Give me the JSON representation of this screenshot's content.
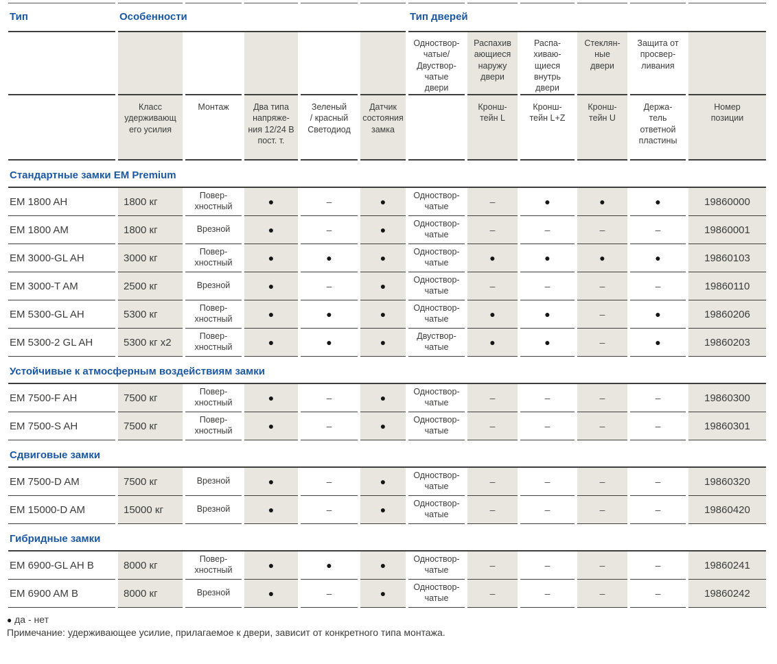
{
  "colors": {
    "accent_blue": "#1b58a4",
    "band_beige": "#e8e6df",
    "line_dark": "#3d3d3b",
    "text_dark": "#3c3c3b"
  },
  "symbols": {
    "yes": "●",
    "no": "–"
  },
  "header": {
    "groups": [
      {
        "label": "Тип"
      },
      {
        "label": "Особенности"
      },
      {
        "label": "Тип дверей"
      }
    ],
    "door_types": [
      "Одноствор-\nчатые/\nДвуствор-\nчатые\nдвери",
      "Распахив\nающиеся\nнаружу\nдвери",
      "Распа-\nхиваю-\nщиеся\nвнутрь\nдвери",
      "Стеклян-\nные\nдвери",
      "Защита от\nпросвер-\nливания"
    ],
    "columns": [
      "Класс\nудерживающ\nего усилия",
      "Монтаж",
      "Два типа\nнапряже-\nния 12/24 В\nпост. т.",
      "Зеленый\n/ красный\nСветодиод",
      "Датчик\nсостояния\nзамка",
      "",
      "Кронш-\nтейн L",
      "Кронш-\nтейн L+Z",
      "Кронш-\nтейн U",
      "Держа-\nтель\nответной\nпластины",
      "Номер\nпозиции"
    ]
  },
  "sections": [
    {
      "title": "Стандартные замки EM Premium",
      "rows": [
        {
          "name": "EM 1800 AH",
          "force": "1800 кг",
          "mount": "Повер-\nхностный",
          "features": [
            "●",
            "–",
            "●"
          ],
          "door": "Одноствор-\nчатые",
          "brackets": [
            "–",
            "●",
            "●",
            "●"
          ],
          "part": "19860000"
        },
        {
          "name": "EM 1800 AM",
          "force": "1800 кг",
          "mount": "Врезной",
          "features": [
            "●",
            "–",
            "●"
          ],
          "door": "Одноствор-\nчатые",
          "brackets": [
            "–",
            "–",
            "–",
            "–"
          ],
          "part": "19860001"
        },
        {
          "name": "EM 3000-GL AH",
          "force": "3000 кг",
          "mount": "Повер-\nхностный",
          "features": [
            "●",
            "●",
            "●"
          ],
          "door": "Одноствор-\nчатые",
          "brackets": [
            "●",
            "●",
            "●",
            "●"
          ],
          "part": "19860103"
        },
        {
          "name": "EM 3000-T AM",
          "force": "2500 кг",
          "mount": "Врезной",
          "features": [
            "●",
            "–",
            "●"
          ],
          "door": "Одноствор-\nчатые",
          "brackets": [
            "–",
            "–",
            "–",
            "–"
          ],
          "part": "19860110"
        },
        {
          "name": "EM 5300-GL AH",
          "force": "5300 кг",
          "mount": "Повер-\nхностный",
          "features": [
            "●",
            "●",
            "●"
          ],
          "door": "Одноствор-\nчатые",
          "brackets": [
            "●",
            "●",
            "–",
            "●"
          ],
          "part": "19860206"
        },
        {
          "name": "EM 5300-2 GL AH",
          "force": "5300 кг x2",
          "mount": "Повер-\nхностный",
          "features": [
            "●",
            "●",
            "●"
          ],
          "door": "Двуствор-\nчатые",
          "brackets": [
            "●",
            "●",
            "–",
            "●"
          ],
          "part": "19860203"
        }
      ]
    },
    {
      "title": "Устойчивые к атмосферным воздействиям замки",
      "rows": [
        {
          "name": "EM 7500-F AH",
          "force": "7500 кг",
          "mount": "Повер-\nхностный",
          "features": [
            "●",
            "–",
            "●"
          ],
          "door": "Одноствор-\nчатые",
          "brackets": [
            "–",
            "–",
            "–",
            "–"
          ],
          "part": "19860300"
        },
        {
          "name": "EM 7500-S AH",
          "force": "7500 кг",
          "mount": "Повер-\nхностный",
          "features": [
            "●",
            "–",
            "●"
          ],
          "door": "Одноствор-\nчатые",
          "brackets": [
            "–",
            "–",
            "–",
            "–"
          ],
          "part": "19860301"
        }
      ]
    },
    {
      "title": "Сдвиговые замки",
      "rows": [
        {
          "name": "EM 7500-D AM",
          "force": "7500 кг",
          "mount": "Врезной",
          "features": [
            "●",
            "–",
            "●"
          ],
          "door": "Одноствор-\nчатые",
          "brackets": [
            "–",
            "–",
            "–",
            "–"
          ],
          "part": "19860320"
        },
        {
          "name": "EM 15000-D AM",
          "force": "15000 кг",
          "mount": "Врезной",
          "features": [
            "●",
            "–",
            "●"
          ],
          "door": "Одноствор-\nчатые",
          "brackets": [
            "–",
            "–",
            "–",
            "–"
          ],
          "part": "19860420"
        }
      ]
    },
    {
      "title": "Гибридные замки",
      "rows": [
        {
          "name": "EM 6900-GL AH B",
          "force": "8000 кг",
          "mount": "Повер-\nхностный",
          "features": [
            "●",
            "●",
            "●"
          ],
          "door": "Одноствор-\nчатые",
          "brackets": [
            "–",
            "–",
            "–",
            "–"
          ],
          "part": "19860241"
        },
        {
          "name": "EM 6900 AM B",
          "force": "8000 кг",
          "mount": "Врезной",
          "features": [
            "●",
            "–",
            "●"
          ],
          "door": "Одноствор-\nчатые",
          "brackets": [
            "–",
            "–",
            "–",
            "–"
          ],
          "part": "19860242"
        }
      ]
    }
  ],
  "footer": {
    "legend_dot": "●",
    "legend_text": "да - нет",
    "note": "Примечание: удерживающее усилие, прилагаемое к двери, зависит от конкретного типа монтажа."
  }
}
